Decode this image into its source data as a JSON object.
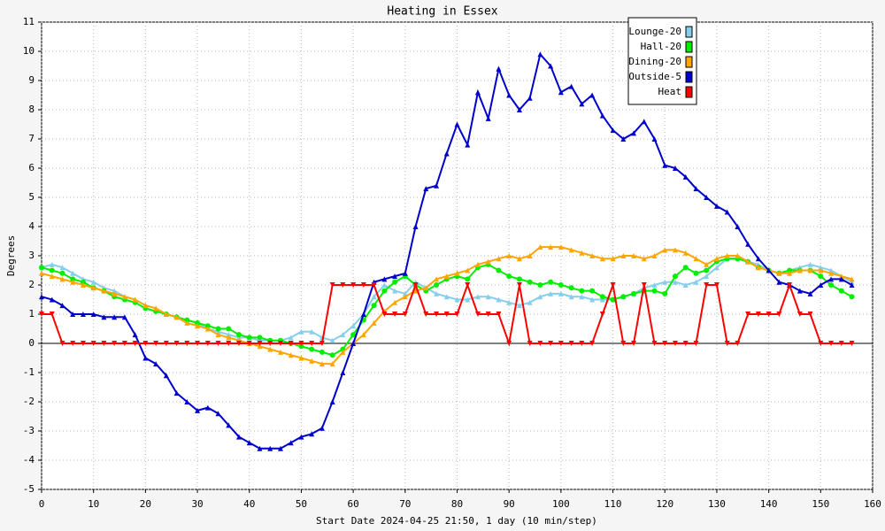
{
  "chart_data": {
    "type": "line",
    "title": "Heating in Essex",
    "xlabel": "Start Date 2024-04-25 21:50, 1 day (10 min/step)",
    "ylabel": "Degrees",
    "x": [
      0,
      2,
      4,
      6,
      8,
      10,
      12,
      14,
      16,
      18,
      20,
      22,
      24,
      26,
      28,
      30,
      32,
      34,
      36,
      38,
      40,
      42,
      44,
      46,
      48,
      50,
      52,
      54,
      56,
      58,
      60,
      62,
      64,
      66,
      68,
      70,
      72,
      74,
      76,
      78,
      80,
      82,
      84,
      86,
      88,
      90,
      92,
      94,
      96,
      98,
      100,
      102,
      104,
      106,
      108,
      110,
      112,
      114,
      116,
      118,
      120,
      122,
      124,
      126,
      128,
      130,
      132,
      134,
      136,
      138,
      140,
      142,
      144,
      146,
      148,
      150,
      152,
      154,
      156
    ],
    "series": [
      {
        "name": "Lounge-20",
        "color": "#87ceeb",
        "marker": "triangle",
        "values": [
          2.6,
          2.7,
          2.6,
          2.4,
          2.2,
          2.1,
          1.9,
          1.8,
          1.6,
          1.5,
          1.3,
          1.2,
          1.0,
          0.9,
          0.8,
          0.7,
          0.5,
          0.4,
          0.3,
          0.2,
          0.2,
          0.1,
          0.1,
          0.1,
          0.2,
          0.4,
          0.4,
          0.2,
          0.1,
          0.3,
          0.6,
          1.0,
          1.6,
          2.0,
          1.8,
          1.7,
          2.1,
          1.9,
          1.7,
          1.6,
          1.5,
          1.5,
          1.6,
          1.6,
          1.5,
          1.4,
          1.3,
          1.4,
          1.6,
          1.7,
          1.7,
          1.6,
          1.6,
          1.5,
          1.5,
          1.5,
          1.6,
          1.7,
          1.9,
          2.0,
          2.1,
          2.1,
          2.0,
          2.1,
          2.3,
          2.6,
          2.9,
          2.9,
          2.8,
          2.7,
          2.5,
          2.4,
          2.5,
          2.6,
          2.7,
          2.6,
          2.5,
          2.3,
          2.1
        ]
      },
      {
        "name": "Hall-20",
        "color": "#00ee00",
        "marker": "circle",
        "values": [
          2.6,
          2.5,
          2.4,
          2.2,
          2.1,
          1.9,
          1.8,
          1.6,
          1.5,
          1.4,
          1.2,
          1.1,
          1.0,
          0.9,
          0.8,
          0.7,
          0.6,
          0.5,
          0.5,
          0.3,
          0.2,
          0.2,
          0.1,
          0.1,
          0.0,
          -0.1,
          -0.2,
          -0.3,
          -0.4,
          -0.2,
          0.3,
          0.8,
          1.3,
          1.8,
          2.1,
          2.3,
          2.0,
          1.8,
          2.0,
          2.2,
          2.3,
          2.2,
          2.6,
          2.7,
          2.5,
          2.3,
          2.2,
          2.1,
          2.0,
          2.1,
          2.0,
          1.9,
          1.8,
          1.8,
          1.6,
          1.5,
          1.6,
          1.7,
          1.8,
          1.8,
          1.7,
          2.3,
          2.6,
          2.4,
          2.5,
          2.8,
          2.9,
          2.9,
          2.8,
          2.6,
          2.5,
          2.4,
          2.5,
          2.5,
          2.5,
          2.3,
          2.0,
          1.8,
          1.6
        ]
      },
      {
        "name": "Dining-20",
        "color": "#ffa500",
        "marker": "triangle",
        "values": [
          2.4,
          2.3,
          2.2,
          2.1,
          2.0,
          1.9,
          1.8,
          1.7,
          1.6,
          1.5,
          1.3,
          1.2,
          1.0,
          0.9,
          0.7,
          0.6,
          0.5,
          0.3,
          0.2,
          0.1,
          0.0,
          -0.1,
          -0.2,
          -0.3,
          -0.4,
          -0.5,
          -0.6,
          -0.7,
          -0.7,
          -0.3,
          0.0,
          0.3,
          0.7,
          1.1,
          1.4,
          1.6,
          1.8,
          1.9,
          2.2,
          2.3,
          2.4,
          2.5,
          2.7,
          2.8,
          2.9,
          3.0,
          2.9,
          3.0,
          3.3,
          3.3,
          3.3,
          3.2,
          3.1,
          3.0,
          2.9,
          2.9,
          3.0,
          3.0,
          2.9,
          3.0,
          3.2,
          3.2,
          3.1,
          2.9,
          2.7,
          2.9,
          3.0,
          3.0,
          2.8,
          2.6,
          2.5,
          2.4,
          2.4,
          2.5,
          2.5,
          2.5,
          2.4,
          2.3,
          2.2
        ]
      },
      {
        "name": "Outside-5",
        "color": "#0000cc",
        "marker": "triangle",
        "values": [
          1.6,
          1.5,
          1.3,
          1.0,
          1.0,
          1.0,
          0.9,
          0.9,
          0.9,
          0.3,
          -0.5,
          -0.7,
          -1.1,
          -1.7,
          -2.0,
          -2.3,
          -2.2,
          -2.4,
          -2.8,
          -3.2,
          -3.4,
          -3.6,
          -3.6,
          -3.6,
          -3.4,
          -3.2,
          -3.1,
          -2.9,
          -2.0,
          -1.0,
          0.0,
          1.0,
          2.1,
          2.2,
          2.3,
          2.4,
          4.0,
          5.3,
          5.4,
          6.5,
          7.5,
          6.8,
          8.6,
          7.7,
          9.4,
          8.5,
          8.0,
          8.4,
          9.9,
          9.5,
          8.6,
          8.8,
          8.2,
          8.5,
          7.8,
          7.3,
          7.0,
          7.2,
          7.6,
          7.0,
          6.1,
          6.0,
          5.7,
          5.3,
          5.0,
          4.7,
          4.5,
          4.0,
          3.4,
          2.9,
          2.5,
          2.1,
          2.0,
          1.8,
          1.7,
          2.0,
          2.2,
          2.2,
          2.0
        ]
      },
      {
        "name": "Heat",
        "color": "#ff0000",
        "marker": "triangle-down",
        "values": [
          1,
          1,
          0,
          0,
          0,
          0,
          0,
          0,
          0,
          0,
          0,
          0,
          0,
          0,
          0,
          0,
          0,
          0,
          0,
          0,
          0,
          0,
          0,
          0,
          0,
          0,
          0,
          0,
          2,
          2,
          2,
          2,
          2,
          1,
          1,
          1,
          2,
          1,
          1,
          1,
          1,
          2,
          1,
          1,
          1,
          0,
          2,
          0,
          0,
          0,
          0,
          0,
          0,
          0,
          1,
          2,
          0,
          0,
          2,
          0,
          0,
          0,
          0,
          0,
          2,
          2,
          0,
          0,
          1,
          1,
          1,
          1,
          2,
          1,
          1,
          0,
          0,
          0,
          0
        ]
      }
    ],
    "xlim": [
      0,
      160
    ],
    "xticks": [
      0,
      10,
      20,
      30,
      40,
      50,
      60,
      70,
      80,
      90,
      100,
      110,
      120,
      130,
      140,
      150,
      160
    ],
    "ylim": [
      -5,
      11
    ],
    "yticks": [
      -5,
      -4,
      -3,
      -2,
      -1,
      0,
      1,
      2,
      3,
      4,
      5,
      6,
      7,
      8,
      9,
      10,
      11
    ],
    "grid": true,
    "legend": "upper right"
  }
}
